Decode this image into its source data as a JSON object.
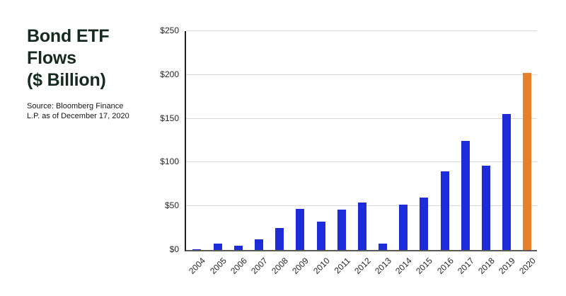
{
  "panel": {
    "title_lines": [
      "Bond ETF",
      "Flows",
      "($ Billion)"
    ],
    "title_color": "#142a1e",
    "source_lines": [
      "Source: Bloomberg Finance",
      "L.P. as of December 17, 2020"
    ],
    "source_color": "#161616"
  },
  "chart_data": {
    "type": "bar",
    "title": "Bond ETF Flows ($ Billion)",
    "categories": [
      "2004",
      "2005",
      "2006",
      "2007",
      "2008",
      "2009",
      "2010",
      "2011",
      "2012",
      "2013",
      "2014",
      "2015",
      "2016",
      "2017",
      "2018",
      "2019",
      "2020"
    ],
    "values": [
      1,
      7,
      5,
      12,
      25,
      47,
      32,
      46,
      54,
      7,
      52,
      60,
      90,
      125,
      96,
      155,
      202
    ],
    "xlabel": "",
    "ylabel": "",
    "ylim": [
      0,
      250
    ],
    "ytick_step": 50,
    "ytick_labels": [
      "$0",
      "$50",
      "$100",
      "$150",
      "$200",
      "$250"
    ],
    "grid": true,
    "legend": "none",
    "bar_color": "#1d2bd8",
    "highlight": {
      "category": "2020",
      "color": "#e8802b"
    },
    "gridline_color": "#d9d9d9",
    "tick_label_color": "#262626"
  }
}
